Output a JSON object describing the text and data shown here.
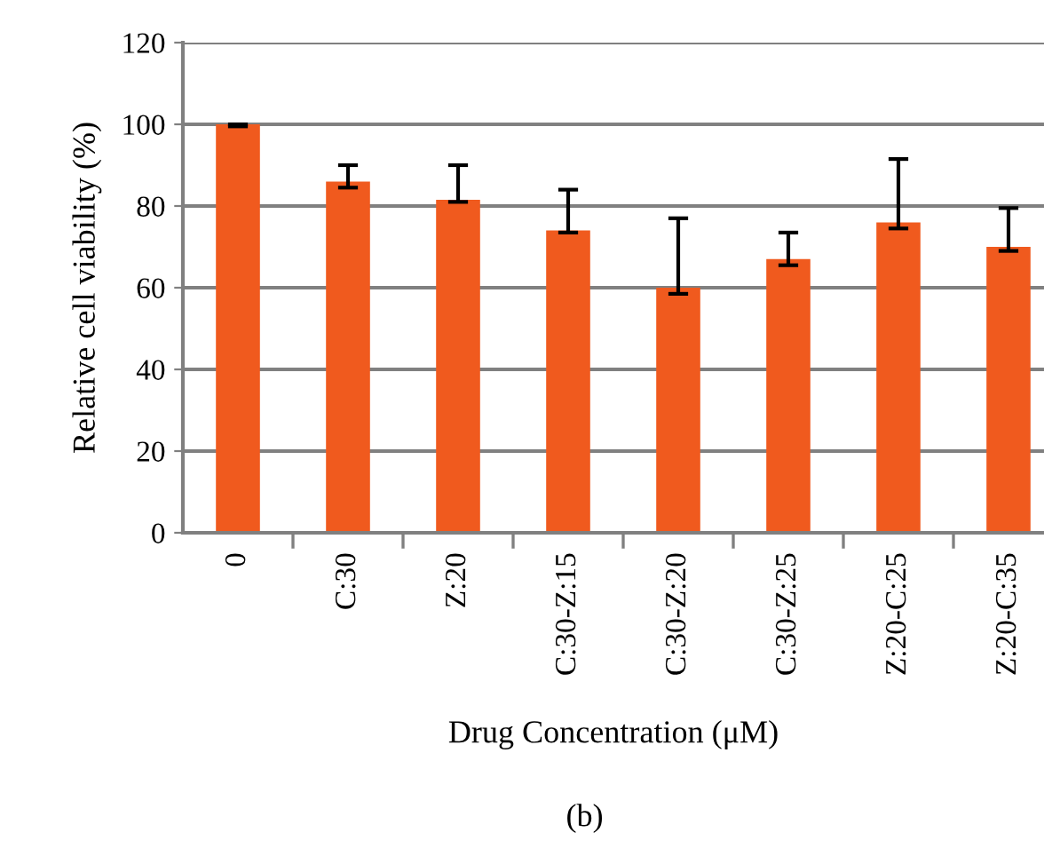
{
  "chart_data": {
    "type": "bar",
    "xlabel": "Drug Concentration (μM)",
    "ylabel": "Relative cell viability (%)",
    "categories": [
      "0",
      "C:30",
      "Z:20",
      "C:30-Z:15",
      "C:30-Z:20",
      "C:30-Z:25",
      "Z:20-C:25",
      "Z:20-C:35"
    ],
    "values": [
      100,
      86,
      81.5,
      74,
      60,
      67,
      76,
      70
    ],
    "errors": [
      [
        99.5,
        100
      ],
      [
        84.5,
        90
      ],
      [
        81,
        90
      ],
      [
        73.5,
        84
      ],
      [
        58.5,
        77
      ],
      [
        65.5,
        73.5
      ],
      [
        74.5,
        91.5
      ],
      [
        69,
        79.5
      ]
    ],
    "color": "#f05a1e",
    "ylim": [
      0,
      120
    ],
    "yticks": [
      0,
      20,
      40,
      60,
      80,
      100,
      120
    ],
    "grid": "y",
    "annotations": [
      "(b)"
    ]
  }
}
